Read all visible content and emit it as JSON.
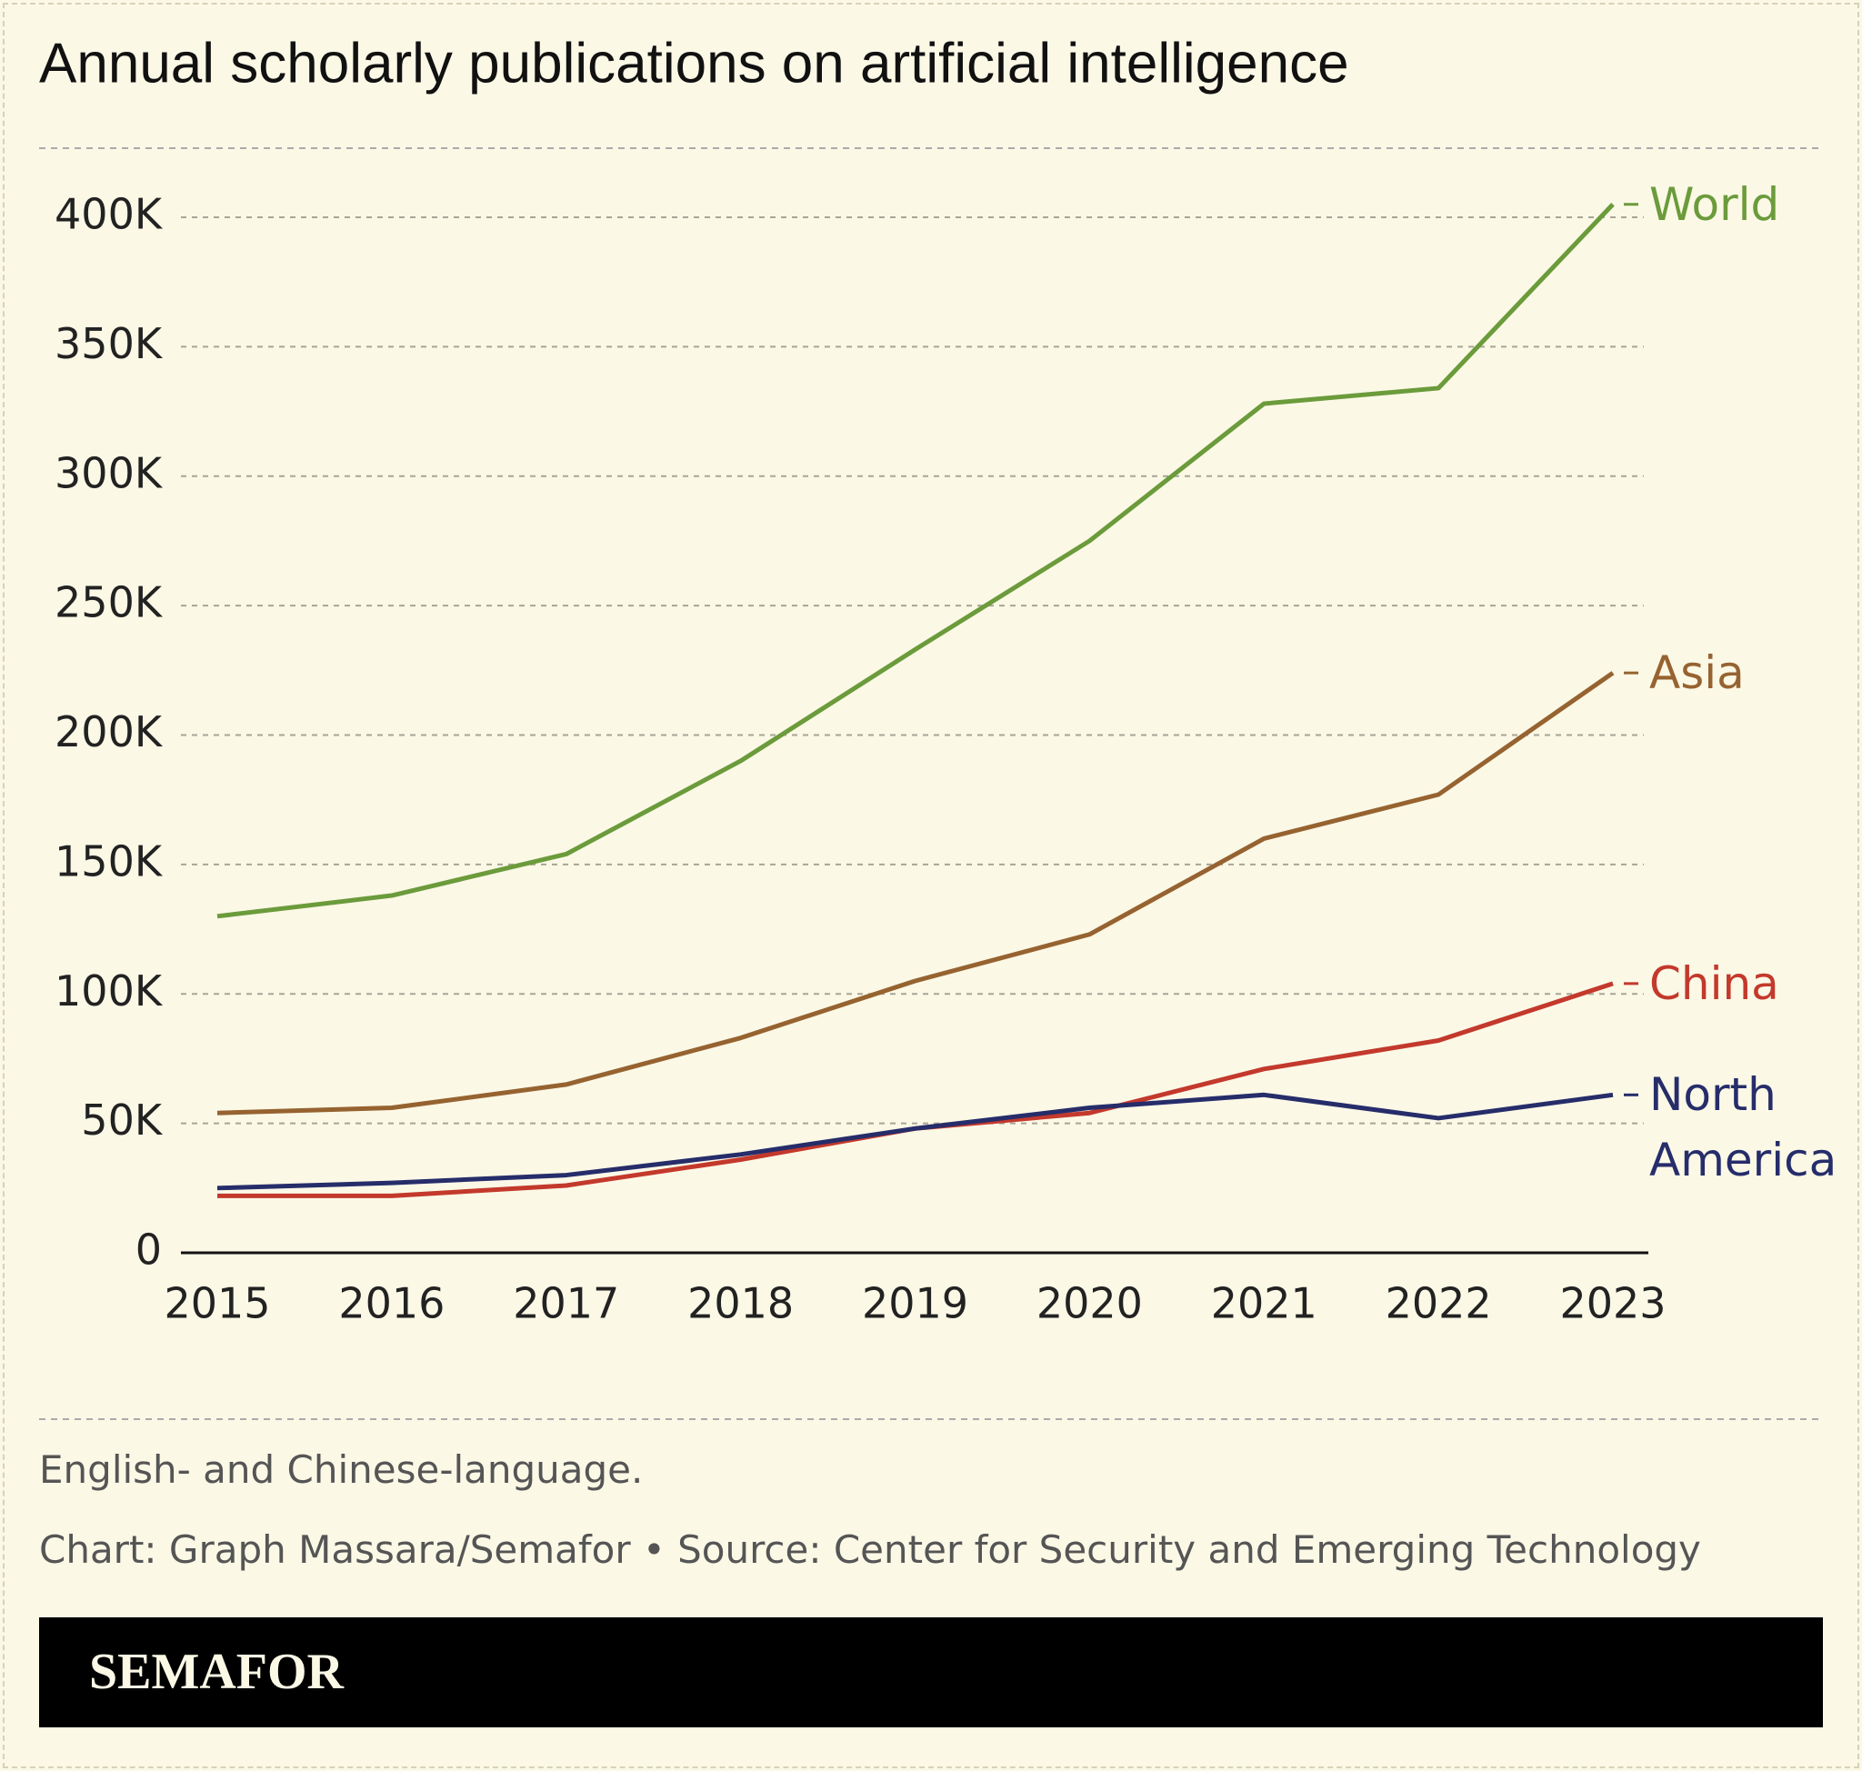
{
  "chart_data": {
    "type": "line",
    "title": "Annual scholarly publications on artificial intelligence",
    "x": [
      "2015",
      "2016",
      "2017",
      "2018",
      "2019",
      "2020",
      "2021",
      "2022",
      "2023"
    ],
    "series": [
      {
        "name": "World",
        "color": "#6b9b3b",
        "values": [
          130000,
          138000,
          154000,
          190000,
          233000,
          275000,
          328000,
          334000,
          405000
        ]
      },
      {
        "name": "Asia",
        "color": "#966330",
        "values": [
          54000,
          56000,
          65000,
          83000,
          105000,
          123000,
          160000,
          177000,
          224000
        ]
      },
      {
        "name": "China",
        "color": "#c3392c",
        "values": [
          22000,
          22000,
          26000,
          36000,
          48000,
          54000,
          71000,
          82000,
          104000
        ]
      },
      {
        "name": "North America",
        "color": "#262d6a",
        "values": [
          25000,
          27000,
          30000,
          38000,
          48000,
          56000,
          61000,
          52000,
          61000
        ]
      }
    ],
    "ylim": [
      0,
      400000
    ],
    "yticks": [
      0,
      {
        "value": 50000,
        "label": "50K"
      },
      {
        "value": 100000,
        "label": "100K"
      },
      {
        "value": 150000,
        "label": "150K"
      },
      {
        "value": 200000,
        "label": "200K"
      },
      {
        "value": 250000,
        "label": "250K"
      },
      {
        "value": 300000,
        "label": "300K"
      },
      {
        "value": 350000,
        "label": "350K"
      },
      {
        "value": 400000,
        "label": "400K"
      }
    ],
    "grid": true,
    "note": "English- and Chinese-language.",
    "source": "Chart: Graph Massara/Semafor • Source: Center for Security and Emerging Technology",
    "brand": "SEMAFOR"
  }
}
